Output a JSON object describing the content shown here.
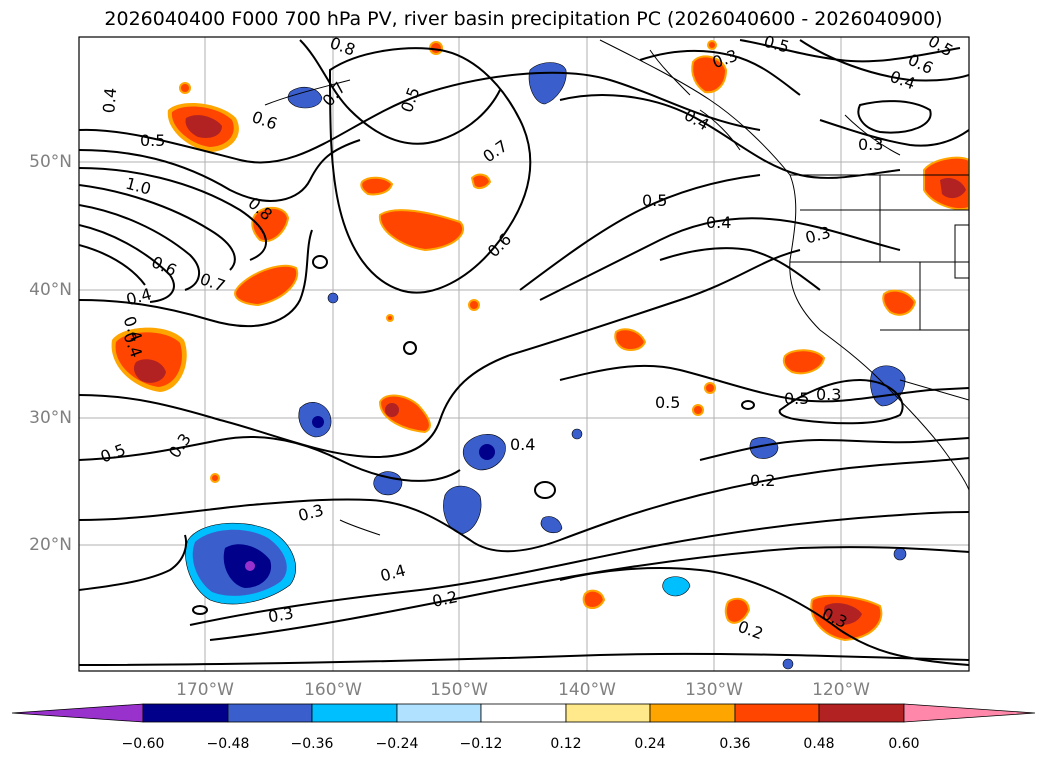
{
  "title": "2026040400 F000 700 hPa PV, river basin precipitation PC (2026040600 - 2026040900)",
  "lat_labels": [
    "50°N",
    "40°N",
    "30°N",
    "20°N"
  ],
  "lon_labels": [
    "170°W",
    "160°W",
    "150°W",
    "140°W",
    "130°W",
    "120°W"
  ],
  "colorbar": {
    "ticks": [
      "−0.60",
      "−0.48",
      "−0.36",
      "−0.24",
      "−0.12",
      "0.12",
      "0.24",
      "0.36",
      "0.48",
      "0.60"
    ],
    "colors": [
      "#9932cc",
      "#00008b",
      "#3a5fcd",
      "#00bfff",
      "#b0e2ff",
      "#ffffff",
      "#ffe98a",
      "#ffa500",
      "#ff4500",
      "#b22222",
      "#ff88aa"
    ]
  },
  "contour_labels": [
    {
      "text": "0.4"
    },
    {
      "text": "0.5"
    },
    {
      "text": "1.0"
    },
    {
      "text": "0.8"
    },
    {
      "text": "0.6"
    },
    {
      "text": "0.7"
    },
    {
      "text": "0.4"
    },
    {
      "text": "0.4"
    },
    {
      "text": "0.4"
    },
    {
      "text": "0.5"
    },
    {
      "text": "0.3"
    },
    {
      "text": "0.3"
    },
    {
      "text": "0.4"
    },
    {
      "text": "0.2"
    },
    {
      "text": "0.3"
    },
    {
      "text": "0.6"
    },
    {
      "text": "0.7"
    },
    {
      "text": "0.5"
    },
    {
      "text": "0.8"
    },
    {
      "text": "0.7"
    },
    {
      "text": "0.6"
    },
    {
      "text": "0.5"
    },
    {
      "text": "0.4"
    },
    {
      "text": "0.3"
    },
    {
      "text": "0.3"
    },
    {
      "text": "0.5"
    },
    {
      "text": "0.4"
    },
    {
      "text": "0.5"
    },
    {
      "text": "0.3"
    },
    {
      "text": "0.6"
    },
    {
      "text": "0.4"
    },
    {
      "text": "0.3"
    },
    {
      "text": "0.5"
    },
    {
      "text": "0.2"
    },
    {
      "text": "0.2"
    },
    {
      "text": "0.3"
    },
    {
      "text": "0.4"
    },
    {
      "text": "0.5"
    }
  ],
  "icons": {
    "coastline": "coastline-shape",
    "state-borders": "border-lines"
  }
}
